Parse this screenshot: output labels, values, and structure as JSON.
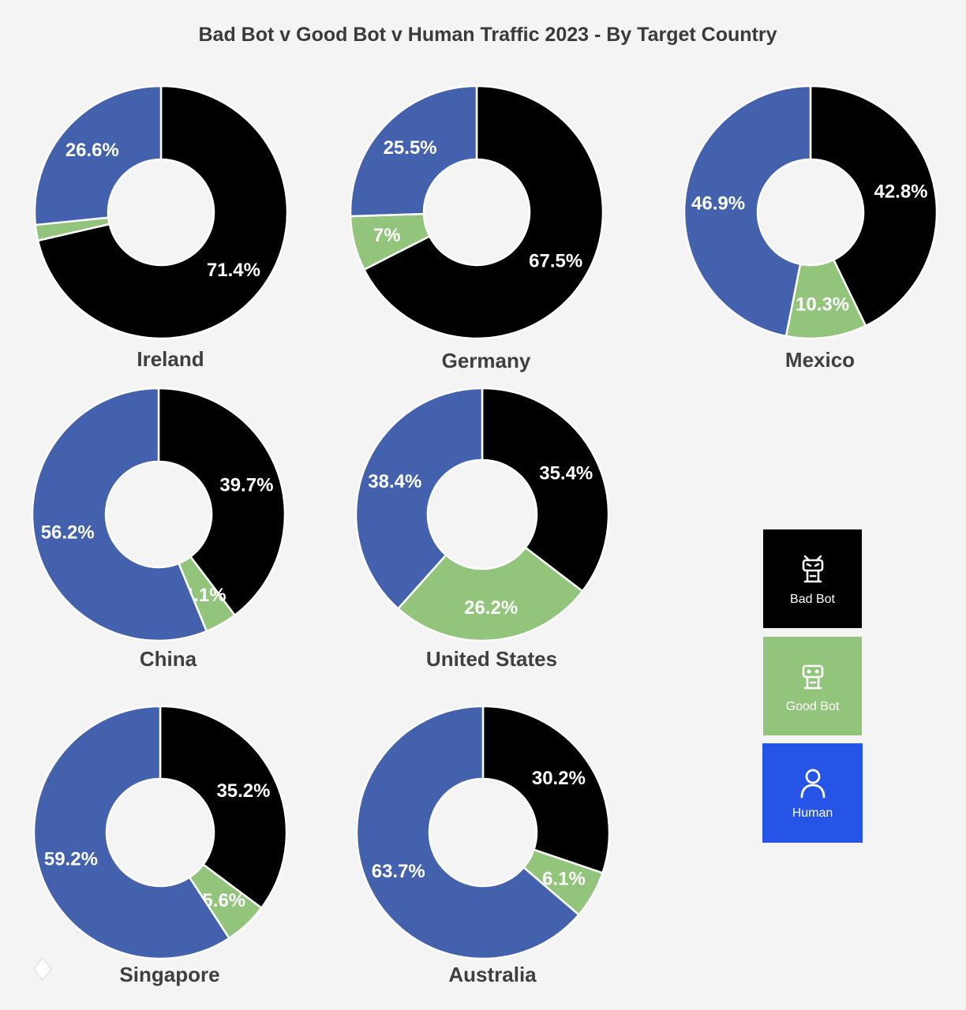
{
  "title": "Bad Bot v Good Bot v Human Traffic 2023 -  By Target Country",
  "colors": {
    "bad_bot": "#000000",
    "good_bot": "#92c47c",
    "human": "#4361ad",
    "legend_human": "#2554e6"
  },
  "legend": [
    {
      "label": "Bad Bot",
      "icon": "bad-bot-icon",
      "color": "#000000"
    },
    {
      "label": "Good Bot",
      "icon": "good-bot-icon",
      "color": "#92c47c"
    },
    {
      "label": "Human",
      "icon": "human-icon",
      "color": "#2554e6"
    }
  ],
  "chart_data": [
    {
      "type": "pie",
      "donut": true,
      "country": "Ireland",
      "slices": [
        {
          "category": "Bad Bot",
          "value": 71.4,
          "label": "71.4%"
        },
        {
          "category": "Good Bot",
          "value": 2,
          "label": "2%"
        },
        {
          "category": "Human",
          "value": 26.6,
          "label": "26.6%"
        }
      ]
    },
    {
      "type": "pie",
      "donut": true,
      "country": "Germany",
      "slices": [
        {
          "category": "Bad Bot",
          "value": 67.5,
          "label": "67.5%"
        },
        {
          "category": "Good Bot",
          "value": 7,
          "label": "7%"
        },
        {
          "category": "Human",
          "value": 25.5,
          "label": "25.5%"
        }
      ]
    },
    {
      "type": "pie",
      "donut": true,
      "country": "Mexico",
      "slices": [
        {
          "category": "Bad Bot",
          "value": 42.8,
          "label": "42.8%"
        },
        {
          "category": "Good Bot",
          "value": 10.3,
          "label": "10.3%"
        },
        {
          "category": "Human",
          "value": 46.9,
          "label": "46.9%"
        }
      ]
    },
    {
      "type": "pie",
      "donut": true,
      "country": "China",
      "slices": [
        {
          "category": "Bad Bot",
          "value": 39.7,
          "label": "39.7%"
        },
        {
          "category": "Good Bot",
          "value": 4.1,
          "label": "4.1%"
        },
        {
          "category": "Human",
          "value": 56.2,
          "label": "56.2%"
        }
      ]
    },
    {
      "type": "pie",
      "donut": true,
      "country": "United States",
      "slices": [
        {
          "category": "Bad Bot",
          "value": 35.4,
          "label": "35.4%"
        },
        {
          "category": "Good Bot",
          "value": 26.2,
          "label": "26.2%"
        },
        {
          "category": "Human",
          "value": 38.4,
          "label": "38.4%"
        }
      ]
    },
    {
      "type": "pie",
      "donut": true,
      "country": "Singapore",
      "slices": [
        {
          "category": "Bad Bot",
          "value": 35.2,
          "label": "35.2%"
        },
        {
          "category": "Good Bot",
          "value": 5.6,
          "label": "5.6%"
        },
        {
          "category": "Human",
          "value": 59.2,
          "label": "59.2%"
        }
      ]
    },
    {
      "type": "pie",
      "donut": true,
      "country": "Australia",
      "slices": [
        {
          "category": "Bad Bot",
          "value": 30.2,
          "label": "30.2%"
        },
        {
          "category": "Good Bot",
          "value": 6.1,
          "label": "6.1%"
        },
        {
          "category": "Human",
          "value": 63.7,
          "label": "63.7%"
        }
      ]
    }
  ]
}
